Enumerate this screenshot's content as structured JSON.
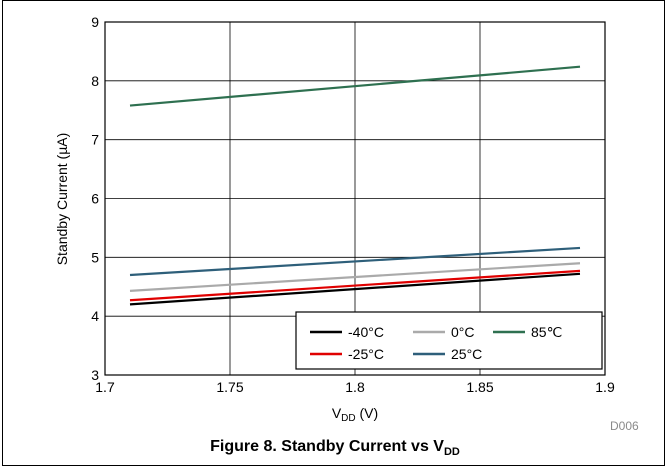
{
  "top_note": "",
  "figure_code": "D006",
  "caption": {
    "prefix": "Figure 8. Standby Current vs V",
    "sub": "DD"
  },
  "chart_data": {
    "type": "line",
    "title": "",
    "xlabel_main": "V",
    "xlabel_sub": "DD",
    "xlabel_suffix": " (V)",
    "ylabel": "Standby Current (µA)",
    "xlim": [
      1.7,
      1.9
    ],
    "ylim": [
      3,
      9
    ],
    "xticks": [
      1.7,
      1.75,
      1.8,
      1.85,
      1.9
    ],
    "xtick_labels": [
      "1.7",
      "1.75",
      "1.8",
      "1.85",
      "1.9"
    ],
    "yticks": [
      3,
      4,
      5,
      6,
      7,
      8,
      9
    ],
    "ytick_labels": [
      "3",
      "4",
      "5",
      "6",
      "7",
      "8",
      "9"
    ],
    "grid": true,
    "legend_position": "bottom-right",
    "series": [
      {
        "name": "-40°C",
        "color": "#000000",
        "x": [
          1.71,
          1.89
        ],
        "y": [
          4.2,
          4.72
        ]
      },
      {
        "name": "0°C",
        "color": "#aaaaaa",
        "x": [
          1.71,
          1.89
        ],
        "y": [
          4.43,
          4.9
        ]
      },
      {
        "name": "85℃",
        "color": "#2e7050",
        "x": [
          1.71,
          1.89
        ],
        "y": [
          7.58,
          8.24
        ]
      },
      {
        "name": "-25°C",
        "color": "#e00000",
        "x": [
          1.71,
          1.89
        ],
        "y": [
          4.27,
          4.77
        ]
      },
      {
        "name": "25°C",
        "color": "#2e5f7a",
        "x": [
          1.71,
          1.89
        ],
        "y": [
          4.7,
          5.16
        ]
      }
    ]
  }
}
